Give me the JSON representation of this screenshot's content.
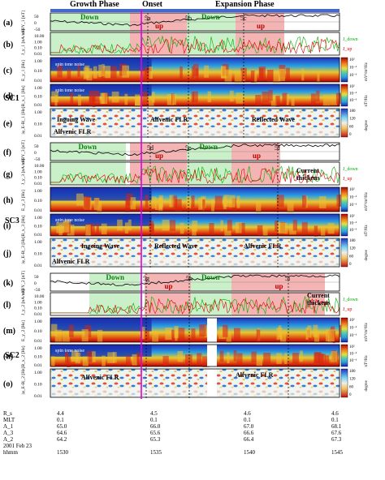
{
  "header": {
    "phases": [
      "Growth Phase",
      "Onset",
      "Expansion Phase"
    ]
  },
  "spacecraft": [
    "SC1",
    "SC3",
    "SC2"
  ],
  "panels": [
    {
      "letter": "(a)",
      "ylabel": "ΔBY_1",
      "unit": "[nT]",
      "ticks": [
        "50",
        "0",
        "-50"
      ]
    },
    {
      "letter": "(b)",
      "ylabel": "J_y_1",
      "unit": "[nA/m²]",
      "ticks": [
        "10.00",
        "1.00",
        "0.10",
        "0.01"
      ]
    },
    {
      "letter": "(c)",
      "ylabel": "E_y_1",
      "unit": "[Hz]",
      "ticks": [
        "1.00",
        "0.10",
        "0.01"
      ]
    },
    {
      "letter": "(d)",
      "ylabel": "B_x_1",
      "unit": "[Hz]",
      "ticks": [
        "1.00",
        "0.10",
        "0.01"
      ]
    },
    {
      "letter": "(e)",
      "ylabel": "|φ_E-B|_1",
      "unit": "[Hz]",
      "ticks": [
        "1.00",
        "0.10",
        "0.01"
      ]
    },
    {
      "letter": "(f)",
      "ylabel": "ΔBY_3",
      "unit": "[nT]",
      "ticks": [
        "50",
        "0",
        "-50"
      ]
    },
    {
      "letter": "(g)",
      "ylabel": "J_y_3",
      "unit": "[nA/m²]",
      "ticks": [
        "10.00",
        "1.00",
        "0.10",
        "0.01"
      ]
    },
    {
      "letter": "(h)",
      "ylabel": "E_y_3",
      "unit": "[Hz]",
      "ticks": [
        "1.00",
        "0.10",
        "0.01"
      ]
    },
    {
      "letter": "(i)",
      "ylabel": "B_x_3",
      "unit": "[Hz]",
      "ticks": [
        "1.00",
        "0.10",
        "0.01"
      ]
    },
    {
      "letter": "(j)",
      "ylabel": "|φ_E-B|_3",
      "unit": "[Hz]",
      "ticks": [
        "1.00",
        "0.10",
        "0.01"
      ]
    },
    {
      "letter": "(k)",
      "ylabel": "ΔBY_2",
      "unit": "[nT]",
      "ticks": [
        "50",
        "0",
        "-50"
      ]
    },
    {
      "letter": "(l)",
      "ylabel": "J_y_2",
      "unit": "[nA/m²]",
      "ticks": [
        "10.00",
        "1.00",
        "0.10",
        "0.01"
      ]
    },
    {
      "letter": "(m)",
      "ylabel": "E_y_2",
      "unit": "[Hz]",
      "ticks": [
        "1.00",
        "0.10",
        "0.01"
      ]
    },
    {
      "letter": "(n)",
      "ylabel": "B_x_2",
      "unit": "[Hz]",
      "ticks": [
        "1.00",
        "0.10",
        "0.01"
      ]
    },
    {
      "letter": "(o)",
      "ylabel": "|φ_E-B|_2",
      "unit": "[Hz]",
      "ticks": [
        "1.00",
        "0.10",
        "0.01"
      ]
    }
  ],
  "annotations": {
    "down": "Down",
    "up": "up",
    "events_sc1": [
      "5a",
      "5b",
      "5c"
    ],
    "events_sc3": [
      "5d",
      "5e",
      "5f"
    ],
    "events_sc2": [
      "5g",
      "5h",
      "5i"
    ],
    "spin_tone_noise": "spin tone noise",
    "ingoing_wave": "Ingoing Wave",
    "alfvenic_flr": "Alfvenic FLR",
    "reflected_wave": "Reflected Wave",
    "current_thickens": "Current thickens",
    "jdown": "J_down",
    "jup": "J_up"
  },
  "colorbars": {
    "spec_e_unit": "mV²/m²/Hz",
    "spec_b_unit": "nT²/Hz",
    "spec_ticks": [
      "10²",
      "10⁰",
      "10⁻²",
      "10⁻⁴",
      "10⁻⁶",
      "10⁻⁸"
    ],
    "phase_unit": "degree",
    "phase_ticks": [
      "180",
      "150",
      "120",
      "90",
      "60",
      "30",
      "0"
    ]
  },
  "ephemeris": {
    "labels": [
      "R_s",
      "MLT",
      "Λ_1",
      "Λ_3",
      "Λ_2",
      "2001 Feb 23",
      "hhmm"
    ],
    "columns": [
      {
        "R": "4.4",
        "MLT": "0.1",
        "L1": "65.0",
        "L3": "64.6",
        "L2": "64.2",
        "hhmm": "1530"
      },
      {
        "R": "4.5",
        "MLT": "0.1",
        "L1": "66.0",
        "L3": "65.6",
        "L2": "65.3",
        "hhmm": "1535"
      },
      {
        "R": "4.6",
        "MLT": "0.1",
        "L1": "67.0",
        "L3": "66.6",
        "L2": "66.4",
        "hhmm": "1540"
      },
      {
        "R": "4.6",
        "MLT": "0.1",
        "L1": "68.1",
        "L3": "67.6",
        "L2": "67.3",
        "hhmm": "1545"
      }
    ]
  },
  "colors": {
    "down_fill": "#c9f0c9",
    "up_fill": "#f4b4b4",
    "onset_line": "#e000e0",
    "jdown_line": "#00b000",
    "jup_line": "#e00000",
    "phase_bar": "#4466dd"
  }
}
